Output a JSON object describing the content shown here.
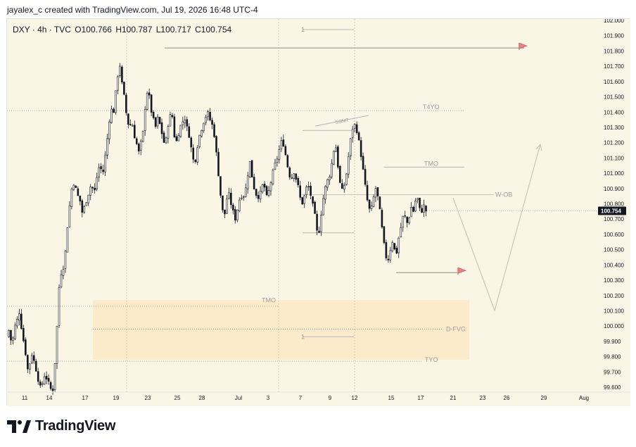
{
  "header": {
    "text": "jayalex_c created with TradingView.com, Jul 19, 2026 16:48 UTC-4"
  },
  "legend": {
    "symbol": "DXY · 4h · TVC",
    "open": "O100.766",
    "high": "H100.787",
    "low": "L100.717",
    "close": "C100.754"
  },
  "price_tag": {
    "value": "100.754",
    "color": "#131722"
  },
  "branding": {
    "label": "TradingView",
    "icon": "tradingview-logo-icon"
  },
  "annotations": {
    "t4yo": "T4YO",
    "tmo_upper": "TMO",
    "wob": "W-OB",
    "ssmt": "SSMT",
    "tmo_lower": "TMO",
    "dfvg": "D-FVG",
    "tyo": "TYO",
    "one_top": "1",
    "one_mid": "1"
  },
  "colors": {
    "candle": "#131722",
    "zone": "#fbe9c6",
    "flag": "#f08080",
    "line": "#b2b5be"
  },
  "chart_data": {
    "type": "candlestick",
    "symbol": "DXY",
    "timeframe": "4h",
    "y_axis": {
      "min": 99.6,
      "max": 102.0,
      "ticks": [
        "102.000",
        "101.900",
        "101.800",
        "101.700",
        "101.600",
        "101.500",
        "101.400",
        "101.300",
        "101.200",
        "101.100",
        "101.000",
        "100.900",
        "100.800",
        "100.700",
        "100.600",
        "100.500",
        "100.400",
        "100.300",
        "100.200",
        "100.100",
        "100.000",
        "99.900",
        "99.800",
        "99.700",
        "99.600"
      ]
    },
    "x_axis": {
      "ticks": [
        "11",
        "14",
        "17",
        "19",
        "23",
        "25",
        "28",
        "Jul",
        "3",
        "7",
        "9",
        "12",
        "15",
        "17",
        "21",
        "23",
        "26",
        "29",
        "Aug"
      ]
    },
    "ohlc": {
      "open": "100.766",
      "high": "100.787",
      "low": "100.717",
      "close": "100.754"
    },
    "last_price": 100.754,
    "levels": [
      {
        "label": "",
        "price": 101.82
      },
      {
        "label": "T4YO",
        "price": 101.41
      },
      {
        "label": "TMO",
        "price": 101.04
      },
      {
        "label": "W-OB",
        "price": 100.86
      },
      {
        "label": "TMO",
        "price": 100.17
      },
      {
        "label": "D-FVG",
        "price": 99.98
      },
      {
        "label": "TYO",
        "price": 99.78
      }
    ],
    "path": [
      [
        0,
        99.93
      ],
      [
        2,
        99.98
      ],
      [
        4,
        99.92
      ],
      [
        6,
        99.88
      ],
      [
        8,
        99.98
      ],
      [
        10,
        100.02
      ],
      [
        12,
        100.05
      ],
      [
        14,
        100.1
      ],
      [
        15,
        100.03
      ],
      [
        17,
        99.95
      ],
      [
        19,
        99.87
      ],
      [
        21,
        99.8
      ],
      [
        23,
        99.7
      ],
      [
        25,
        99.76
      ],
      [
        27,
        99.82
      ],
      [
        29,
        99.78
      ],
      [
        31,
        99.74
      ],
      [
        33,
        99.67
      ],
      [
        35,
        99.63
      ],
      [
        37,
        99.58
      ],
      [
        39,
        99.64
      ],
      [
        41,
        99.68
      ],
      [
        43,
        99.66
      ],
      [
        45,
        99.63
      ],
      [
        47,
        99.6
      ],
      [
        49,
        99.56
      ],
      [
        51,
        99.62
      ],
      [
        53,
        99.88
      ],
      [
        55,
        100.05
      ],
      [
        57,
        100.3
      ],
      [
        59,
        100.35
      ],
      [
        61,
        100.38
      ],
      [
        63,
        100.45
      ],
      [
        65,
        100.62
      ],
      [
        67,
        100.72
      ],
      [
        69,
        100.86
      ],
      [
        71,
        100.92
      ],
      [
        73,
        100.94
      ],
      [
        75,
        100.89
      ],
      [
        77,
        100.85
      ],
      [
        79,
        100.83
      ],
      [
        81,
        100.74
      ],
      [
        83,
        100.76
      ],
      [
        85,
        100.8
      ],
      [
        87,
        100.84
      ],
      [
        89,
        100.88
      ],
      [
        91,
        100.92
      ],
      [
        93,
        100.9
      ],
      [
        95,
        100.88
      ],
      [
        97,
        100.96
      ],
      [
        99,
        101.03
      ],
      [
        101,
        101.05
      ],
      [
        103,
        101.0
      ],
      [
        105,
        101.02
      ],
      [
        107,
        101.15
      ],
      [
        109,
        101.24
      ],
      [
        111,
        101.35
      ],
      [
        113,
        101.42
      ],
      [
        115,
        101.38
      ],
      [
        117,
        101.48
      ],
      [
        119,
        101.6
      ],
      [
        121,
        101.68
      ],
      [
        123,
        101.72
      ],
      [
        125,
        101.55
      ],
      [
        127,
        101.5
      ],
      [
        129,
        101.4
      ],
      [
        131,
        101.33
      ],
      [
        133,
        101.3
      ],
      [
        135,
        101.35
      ],
      [
        137,
        101.27
      ],
      [
        139,
        101.22
      ],
      [
        141,
        101.18
      ],
      [
        143,
        101.13
      ],
      [
        145,
        101.2
      ],
      [
        147,
        101.25
      ],
      [
        149,
        101.4
      ],
      [
        151,
        101.52
      ],
      [
        153,
        101.55
      ],
      [
        155,
        101.45
      ],
      [
        157,
        101.38
      ],
      [
        159,
        101.34
      ],
      [
        161,
        101.3
      ],
      [
        163,
        101.36
      ],
      [
        165,
        101.33
      ],
      [
        167,
        101.28
      ],
      [
        169,
        101.22
      ],
      [
        171,
        101.18
      ],
      [
        173,
        101.25
      ],
      [
        175,
        101.35
      ],
      [
        177,
        101.38
      ],
      [
        179,
        101.37
      ],
      [
        181,
        101.25
      ],
      [
        183,
        101.2
      ],
      [
        185,
        101.24
      ],
      [
        187,
        101.3
      ],
      [
        189,
        101.32
      ],
      [
        191,
        101.35
      ],
      [
        193,
        101.36
      ],
      [
        195,
        101.29
      ],
      [
        197,
        101.25
      ],
      [
        199,
        101.18
      ],
      [
        201,
        101.1
      ],
      [
        203,
        101.06
      ],
      [
        205,
        101.13
      ],
      [
        207,
        101.22
      ],
      [
        209,
        101.26
      ],
      [
        211,
        101.3
      ],
      [
        213,
        101.34
      ],
      [
        215,
        101.37
      ],
      [
        217,
        101.4
      ],
      [
        219,
        101.36
      ],
      [
        221,
        101.33
      ],
      [
        223,
        101.3
      ],
      [
        225,
        101.22
      ],
      [
        227,
        101.1
      ],
      [
        229,
        100.98
      ],
      [
        231,
        100.86
      ],
      [
        233,
        100.76
      ],
      [
        235,
        100.71
      ],
      [
        237,
        100.8
      ],
      [
        239,
        100.88
      ],
      [
        241,
        100.84
      ],
      [
        243,
        100.78
      ],
      [
        245,
        100.74
      ],
      [
        247,
        100.7
      ],
      [
        249,
        100.76
      ],
      [
        251,
        100.82
      ],
      [
        253,
        100.86
      ],
      [
        255,
        100.84
      ],
      [
        257,
        100.87
      ],
      [
        259,
        100.92
      ],
      [
        261,
        101.02
      ],
      [
        263,
        101.08
      ],
      [
        265,
        100.98
      ],
      [
        267,
        100.91
      ],
      [
        269,
        100.87
      ],
      [
        271,
        100.84
      ],
      [
        273,
        100.86
      ],
      [
        275,
        100.88
      ],
      [
        277,
        100.94
      ],
      [
        279,
        100.9
      ],
      [
        281,
        100.84
      ],
      [
        283,
        100.88
      ],
      [
        285,
        100.93
      ],
      [
        287,
        100.99
      ],
      [
        289,
        101.04
      ],
      [
        291,
        101.08
      ],
      [
        293,
        101.11
      ],
      [
        295,
        101.17
      ],
      [
        297,
        101.21
      ],
      [
        299,
        101.19
      ],
      [
        301,
        101.13
      ],
      [
        303,
        101.06
      ],
      [
        305,
        101.0
      ],
      [
        307,
        100.96
      ],
      [
        309,
        100.99
      ],
      [
        311,
        101.02
      ],
      [
        313,
        100.95
      ],
      [
        315,
        100.91
      ],
      [
        317,
        100.84
      ],
      [
        319,
        100.8
      ],
      [
        321,
        100.83
      ],
      [
        323,
        100.89
      ],
      [
        325,
        100.92
      ],
      [
        327,
        100.9
      ],
      [
        329,
        100.84
      ],
      [
        331,
        100.78
      ],
      [
        333,
        100.72
      ],
      [
        335,
        100.62
      ],
      [
        337,
        100.6
      ],
      [
        339,
        100.7
      ],
      [
        341,
        100.8
      ],
      [
        343,
        100.87
      ],
      [
        345,
        100.93
      ],
      [
        347,
        100.96
      ],
      [
        349,
        100.99
      ],
      [
        351,
        101.06
      ],
      [
        353,
        101.14
      ],
      [
        355,
        101.2
      ],
      [
        357,
        101.1
      ],
      [
        359,
        100.98
      ],
      [
        361,
        100.9
      ],
      [
        363,
        100.88
      ],
      [
        365,
        100.93
      ],
      [
        367,
        101.0
      ],
      [
        369,
        101.1
      ],
      [
        371,
        101.2
      ],
      [
        373,
        101.28
      ],
      [
        375,
        101.32
      ],
      [
        377,
        101.31
      ],
      [
        379,
        101.26
      ],
      [
        381,
        101.19
      ],
      [
        383,
        101.11
      ],
      [
        385,
        101.02
      ],
      [
        387,
        100.93
      ],
      [
        389,
        100.84
      ],
      [
        391,
        100.78
      ],
      [
        393,
        100.74
      ],
      [
        395,
        100.8
      ],
      [
        397,
        100.86
      ],
      [
        399,
        100.91
      ],
      [
        401,
        100.84
      ],
      [
        403,
        100.76
      ],
      [
        405,
        100.66
      ],
      [
        407,
        100.56
      ],
      [
        409,
        100.48
      ],
      [
        411,
        100.42
      ],
      [
        413,
        100.45
      ],
      [
        415,
        100.52
      ],
      [
        417,
        100.56
      ],
      [
        419,
        100.5
      ],
      [
        421,
        100.47
      ],
      [
        423,
        100.56
      ],
      [
        425,
        100.62
      ],
      [
        427,
        100.68
      ],
      [
        429,
        100.74
      ],
      [
        431,
        100.7
      ],
      [
        433,
        100.67
      ],
      [
        435,
        100.72
      ],
      [
        437,
        100.78
      ],
      [
        439,
        100.74
      ],
      [
        441,
        100.8
      ],
      [
        443,
        100.86
      ],
      [
        445,
        100.8
      ],
      [
        447,
        100.74
      ],
      [
        449,
        100.76
      ],
      [
        451,
        100.79
      ],
      [
        453,
        100.754
      ]
    ]
  }
}
